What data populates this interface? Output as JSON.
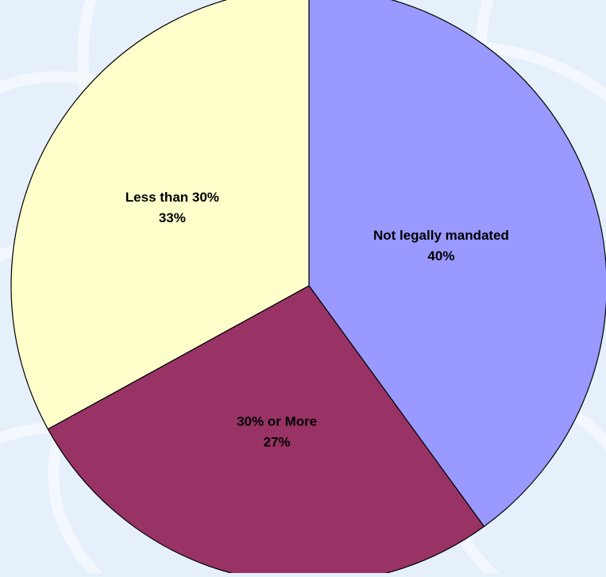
{
  "chart_data": {
    "type": "pie",
    "title": "",
    "categories": [
      "Not legally mandated",
      "30% or More",
      "Less than 30%"
    ],
    "values": [
      40,
      27,
      33
    ],
    "value_labels": [
      "40%",
      "27%",
      "33%"
    ],
    "colors": [
      "#9999ff",
      "#993366",
      "#ffffcc"
    ],
    "start_angle_deg": 0,
    "direction": "clockwise",
    "legend": "none",
    "labels_position": "inside"
  }
}
